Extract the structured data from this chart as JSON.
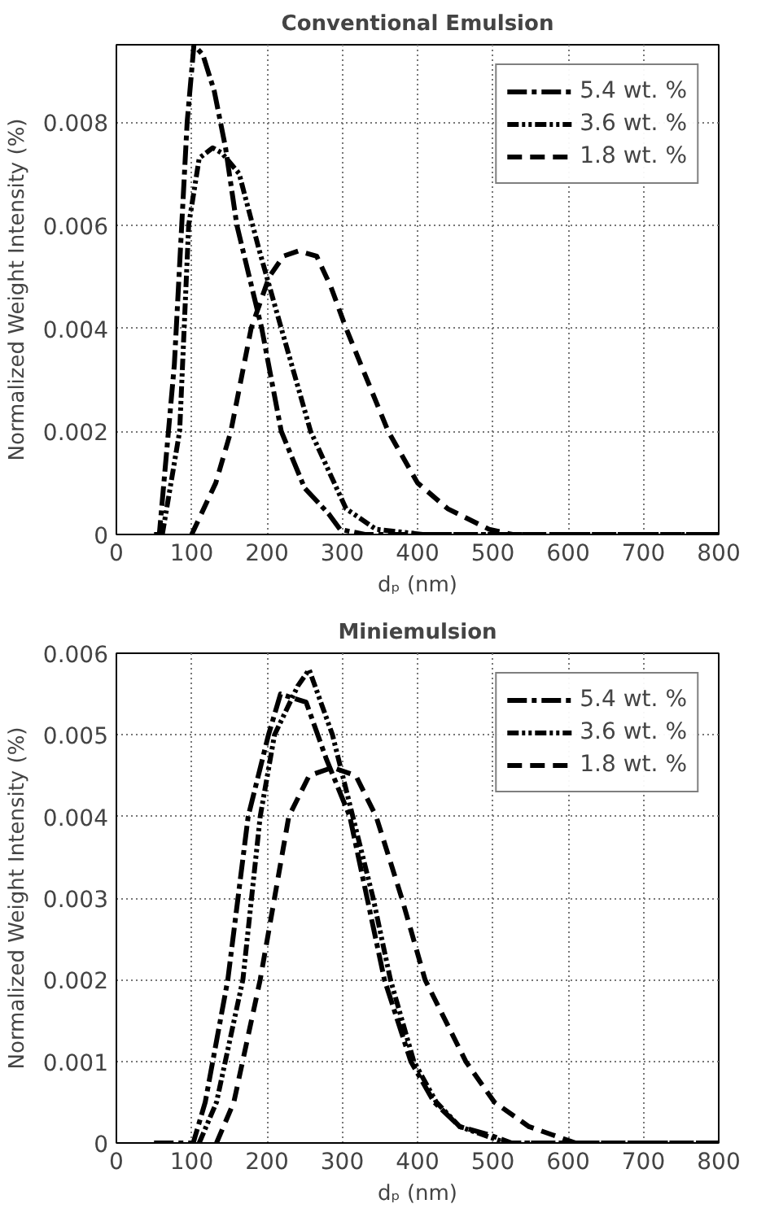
{
  "chart_data": [
    {
      "type": "line",
      "title": "Conventional Emulsion",
      "xlabel": "dₚ (nm)",
      "ylabel": "Normalized Weight Intensity (%)",
      "xlim": [
        0,
        800
      ],
      "ylim": [
        0,
        0.0095
      ],
      "xticks": [
        0,
        100,
        200,
        300,
        400,
        500,
        600,
        700,
        800
      ],
      "yticks": [
        0,
        0.002,
        0.004,
        0.006,
        0.008
      ],
      "grid": true,
      "legend": "top right",
      "series": [
        {
          "name": "5.4 wt. %",
          "color": "#000000",
          "line_style": "dashdot",
          "x": [
            50,
            57,
            77,
            94,
            103,
            115,
            130,
            145,
            160,
            193,
            219,
            250,
            282,
            297,
            330,
            400,
            500,
            600,
            700,
            800
          ],
          "values": [
            0,
            0,
            0.0033,
            0.008,
            0.0095,
            0.0093,
            0.0086,
            0.0075,
            0.006,
            0.004,
            0.002,
            0.0009,
            0.0004,
            0.0001,
            0,
            0,
            0,
            0,
            0,
            0
          ]
        },
        {
          "name": "3.6 wt. %",
          "color": "#000000",
          "line_style": "dashdotdot",
          "x": [
            61,
            84,
            96,
            110,
            128,
            140,
            163,
            190,
            219,
            258,
            305,
            345,
            408,
            500,
            600,
            700,
            800
          ],
          "values": [
            0,
            0.002,
            0.006,
            0.0073,
            0.0075,
            0.0074,
            0.007,
            0.0055,
            0.004,
            0.002,
            0.0005,
            0.0001,
            0,
            0,
            0,
            0,
            0
          ]
        },
        {
          "name": "1.8 wt. %",
          "color": "#000000",
          "line_style": "dashed",
          "x": [
            100,
            132,
            152,
            179,
            203,
            222,
            242,
            266,
            285,
            305,
            361,
            400,
            440,
            495,
            526,
            600,
            700,
            800
          ],
          "values": [
            0,
            0.001,
            0.002,
            0.004,
            0.005,
            0.0054,
            0.0055,
            0.0054,
            0.0048,
            0.004,
            0.002,
            0.001,
            0.0005,
            0.0001,
            0,
            0,
            0,
            0
          ]
        }
      ]
    },
    {
      "type": "line",
      "title": "Miniemulsion",
      "xlabel": "dₚ (nm)",
      "ylabel": "Normalized Weight Intensity (%)",
      "xlim": [
        0,
        800
      ],
      "ylim": [
        0,
        0.006
      ],
      "xticks": [
        0,
        100,
        200,
        300,
        400,
        500,
        600,
        700,
        800
      ],
      "yticks": [
        0,
        0.001,
        0.002,
        0.003,
        0.004,
        0.005,
        0.006
      ],
      "grid": true,
      "legend": "top right",
      "series": [
        {
          "name": "5.4 wt. %",
          "color": "#000000",
          "line_style": "dashdot",
          "x": [
            50,
            102,
            118,
            148,
            175,
            202,
            218,
            252,
            279,
            310,
            333,
            356,
            391,
            422,
            456,
            495,
            525,
            600,
            700,
            800
          ],
          "values": [
            0,
            0,
            0.0005,
            0.002,
            0.004,
            0.005,
            0.0055,
            0.0054,
            0.0047,
            0.004,
            0.003,
            0.002,
            0.001,
            0.0005,
            0.0002,
            0.0001,
            0,
            0,
            0,
            0
          ]
        },
        {
          "name": "3.6 wt. %",
          "color": "#000000",
          "line_style": "dashdotdot",
          "x": [
            110,
            133,
            168,
            191,
            210,
            241,
            256,
            287,
            314,
            341,
            364,
            395,
            425,
            456,
            518,
            600,
            700,
            800
          ],
          "values": [
            0,
            0.0005,
            0.002,
            0.004,
            0.005,
            0.0056,
            0.0058,
            0.005,
            0.004,
            0.003,
            0.002,
            0.001,
            0.0005,
            0.0002,
            0,
            0,
            0,
            0
          ]
        },
        {
          "name": "1.8 wt. %",
          "color": "#000000",
          "line_style": "dashed",
          "x": [
            133,
            156,
            191,
            229,
            256,
            287,
            318,
            345,
            379,
            410,
            464,
            502,
            548,
            579,
            610,
            700,
            800
          ],
          "values": [
            0,
            0.0005,
            0.002,
            0.004,
            0.0045,
            0.0046,
            0.0045,
            0.004,
            0.003,
            0.002,
            0.001,
            0.0005,
            0.0002,
            0.0001,
            0,
            0,
            0
          ]
        }
      ]
    }
  ]
}
